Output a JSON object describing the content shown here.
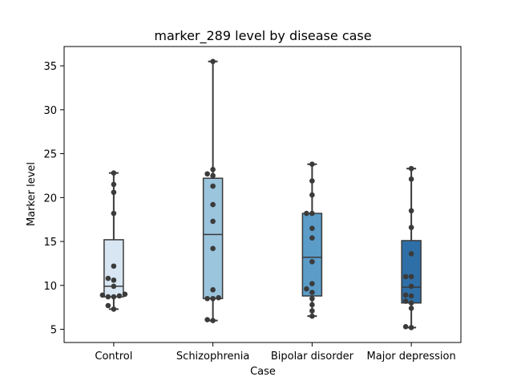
{
  "chart_data": {
    "type": "box",
    "title": "marker_289 level by disease case",
    "xlabel": "Case",
    "ylabel": "Marker level",
    "ylim": [
      3.5,
      37.2
    ],
    "yticks": [
      5,
      10,
      15,
      20,
      25,
      30,
      35
    ],
    "grid": false,
    "legend": "none",
    "categories": [
      "Control",
      "Schizophrenia",
      "Bipolar disorder",
      "Major depression"
    ],
    "boxes": [
      {
        "category": "Control",
        "q1": 8.7,
        "median": 9.9,
        "q3": 15.2,
        "whisker_low": 7.3,
        "whisker_high": 22.8,
        "color": "#d8e6f3"
      },
      {
        "category": "Schizophrenia",
        "q1": 8.5,
        "median": 15.8,
        "q3": 22.2,
        "whisker_low": 6.0,
        "whisker_high": 35.5,
        "color": "#9bc4dd"
      },
      {
        "category": "Bipolar disorder",
        "q1": 8.8,
        "median": 13.2,
        "q3": 18.2,
        "whisker_low": 6.5,
        "whisker_high": 23.8,
        "color": "#5b9cc9"
      },
      {
        "category": "Major depression",
        "q1": 8.0,
        "median": 9.8,
        "q3": 15.1,
        "whisker_low": 5.2,
        "whisker_high": 23.3,
        "color": "#2f6fa7"
      }
    ],
    "points": [
      {
        "category": "Control",
        "values": [
          22.8,
          21.5,
          20.6,
          18.2,
          12.2,
          10.8,
          10.6,
          9.9,
          9.0,
          8.9,
          8.8,
          8.7,
          8.7,
          7.7,
          7.3
        ]
      },
      {
        "category": "Schizophrenia",
        "values": [
          35.5,
          23.2,
          22.7,
          22.5,
          21.3,
          19.2,
          17.3,
          14.2,
          9.5,
          8.6,
          8.5,
          8.5,
          6.1,
          6.0
        ]
      },
      {
        "category": "Bipolar disorder",
        "values": [
          23.8,
          21.9,
          20.3,
          18.2,
          18.2,
          16.5,
          15.4,
          12.7,
          10.2,
          9.6,
          9.2,
          8.5,
          7.8,
          7.1,
          6.5
        ]
      },
      {
        "category": "Major depression",
        "values": [
          23.3,
          22.1,
          18.5,
          16.6,
          13.6,
          11.0,
          11.0,
          9.9,
          8.9,
          8.8,
          8.2,
          8.0,
          7.4,
          5.3,
          5.2
        ]
      }
    ],
    "colors": {
      "box_edge": "#3a3a3a",
      "point": "#3b3b3b"
    }
  }
}
